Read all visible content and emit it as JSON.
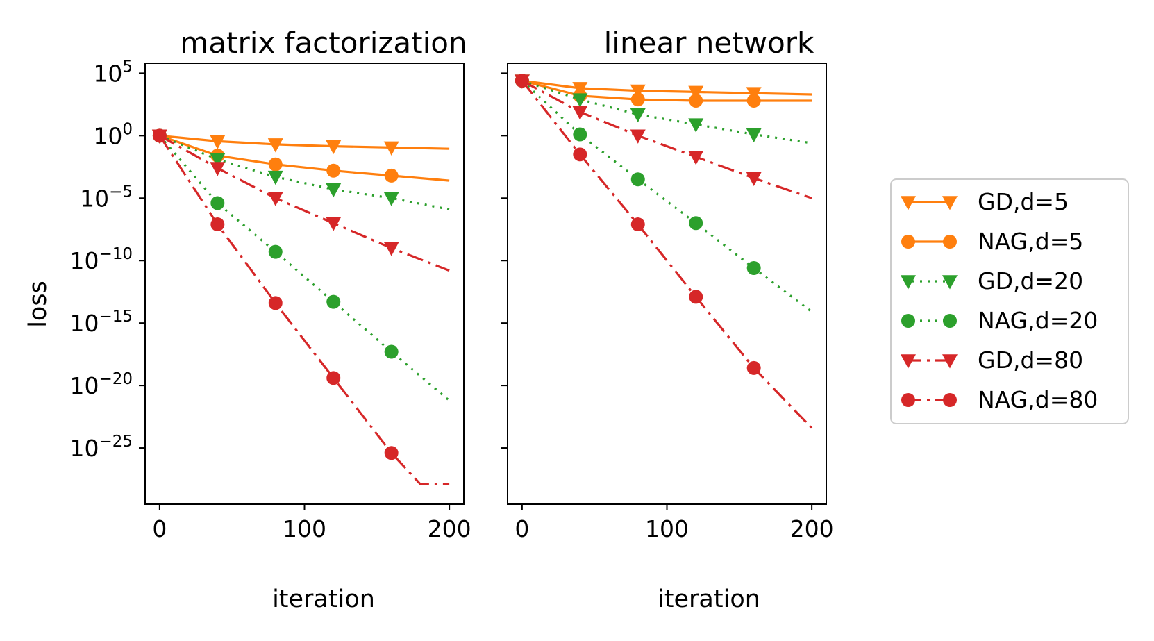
{
  "figure": {
    "ylabel": "loss",
    "xlabel": "iteration"
  },
  "chart_data": [
    {
      "type": "line",
      "title": "matrix factorization",
      "xlabel": "iteration",
      "ylabel": "loss",
      "yscale": "log10",
      "xlim": [
        -10,
        210
      ],
      "ylim": [
        -29.5,
        5.8
      ],
      "xticks": [
        0,
        100,
        200
      ],
      "yticks": [
        5,
        0,
        -5,
        -10,
        -15,
        -20,
        -25
      ],
      "series": [
        {
          "name": "GD,d=5",
          "x": [
            0,
            40,
            80,
            120,
            160,
            200
          ],
          "log10_y": [
            0,
            -0.45,
            -0.7,
            -0.85,
            -0.95,
            -1.05
          ]
        },
        {
          "name": "NAG,d=5",
          "x": [
            0,
            40,
            80,
            120,
            160,
            200
          ],
          "log10_y": [
            0,
            -1.6,
            -2.3,
            -2.8,
            -3.2,
            -3.6
          ]
        },
        {
          "name": "GD,d=20",
          "x": [
            0,
            40,
            80,
            120,
            160,
            200
          ],
          "log10_y": [
            0,
            -1.9,
            -3.3,
            -4.3,
            -5.0,
            -5.9
          ]
        },
        {
          "name": "NAG,d=20",
          "x": [
            0,
            40,
            80,
            120,
            160,
            200
          ],
          "log10_y": [
            0,
            -5.4,
            -9.3,
            -13.3,
            -17.3,
            -21.2
          ]
        },
        {
          "name": "GD,d=80",
          "x": [
            0,
            40,
            80,
            120,
            160,
            200
          ],
          "log10_y": [
            0,
            -2.6,
            -5.0,
            -7.0,
            -9.0,
            -10.8
          ]
        },
        {
          "name": "NAG,d=80",
          "x": [
            0,
            40,
            80,
            120,
            160,
            180,
            200
          ],
          "log10_y": [
            0,
            -7.1,
            -13.4,
            -19.4,
            -25.4,
            -27.9,
            -27.9
          ]
        }
      ]
    },
    {
      "type": "line",
      "title": "linear network",
      "xlabel": "iteration",
      "ylabel": "",
      "yscale": "log10",
      "xlim": [
        -10,
        210
      ],
      "ylim": [
        -29.5,
        5.8
      ],
      "xticks": [
        0,
        100,
        200
      ],
      "yticks": [
        5,
        0,
        -5,
        -10,
        -15,
        -20,
        -25
      ],
      "series": [
        {
          "name": "GD,d=5",
          "x": [
            0,
            40,
            80,
            120,
            160,
            200
          ],
          "log10_y": [
            4.4,
            3.8,
            3.6,
            3.5,
            3.4,
            3.3
          ]
        },
        {
          "name": "NAG,d=5",
          "x": [
            0,
            40,
            80,
            120,
            160,
            200
          ],
          "log10_y": [
            4.4,
            3.2,
            2.9,
            2.8,
            2.8,
            2.8
          ]
        },
        {
          "name": "GD,d=20",
          "x": [
            0,
            40,
            80,
            120,
            160,
            200
          ],
          "log10_y": [
            4.4,
            2.9,
            1.7,
            0.9,
            0.1,
            -0.6
          ]
        },
        {
          "name": "NAG,d=20",
          "x": [
            0,
            40,
            80,
            120,
            160,
            200
          ],
          "log10_y": [
            4.4,
            0.1,
            -3.5,
            -7.0,
            -10.6,
            -14.1
          ]
        },
        {
          "name": "GD,d=80",
          "x": [
            0,
            40,
            80,
            120,
            160,
            200
          ],
          "log10_y": [
            4.4,
            1.9,
            0.0,
            -1.7,
            -3.4,
            -5.0
          ]
        },
        {
          "name": "NAG,d=80",
          "x": [
            0,
            40,
            80,
            120,
            160,
            200
          ],
          "log10_y": [
            4.4,
            -1.5,
            -7.1,
            -12.9,
            -18.6,
            -23.4
          ]
        }
      ]
    }
  ],
  "legend": {
    "placement": "right",
    "entries": [
      {
        "label": "GD,d=5",
        "color": "#ff7f0e",
        "linestyle": "solid",
        "marker": "triangle-down"
      },
      {
        "label": "NAG,d=5",
        "color": "#ff7f0e",
        "linestyle": "solid",
        "marker": "circle"
      },
      {
        "label": "GD,d=20",
        "color": "#2ca02c",
        "linestyle": "dotted",
        "marker": "triangle-down"
      },
      {
        "label": "NAG,d=20",
        "color": "#2ca02c",
        "linestyle": "dotted",
        "marker": "circle"
      },
      {
        "label": "GD,d=80",
        "color": "#d62728",
        "linestyle": "dashdot",
        "marker": "triangle-down"
      },
      {
        "label": "NAG,d=80",
        "color": "#d62728",
        "linestyle": "dashdot",
        "marker": "circle"
      }
    ]
  }
}
